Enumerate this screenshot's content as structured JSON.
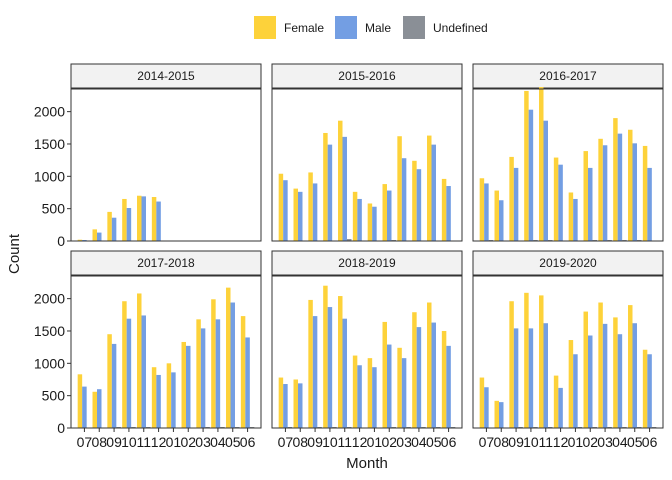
{
  "chart_data": {
    "type": "bar",
    "xlabel": "Month",
    "ylabel": "Count",
    "ylim": [
      0,
      2350
    ],
    "yticks": [
      0,
      500,
      1000,
      1500,
      2000
    ],
    "categories": [
      "07",
      "08",
      "09",
      "10",
      "11",
      "12",
      "01",
      "02",
      "03",
      "04",
      "05",
      "06"
    ],
    "legend": {
      "position": "top",
      "entries": [
        {
          "name": "Female",
          "color": "#FDD23A"
        },
        {
          "name": "Male",
          "color": "#739EE3"
        },
        {
          "name": "Undefined",
          "color": "#8A8F96"
        }
      ]
    },
    "grid": false,
    "panels": [
      {
        "title": "2014-2015",
        "series": [
          {
            "name": "Female",
            "values": [
              20,
              180,
              450,
              650,
              700,
              680,
              null,
              null,
              null,
              null,
              null,
              null
            ]
          },
          {
            "name": "Male",
            "values": [
              10,
              130,
              360,
              510,
              690,
              610,
              null,
              null,
              null,
              null,
              null,
              null
            ]
          },
          {
            "name": "Undefined",
            "values": [
              0,
              0,
              0,
              0,
              0,
              0,
              null,
              null,
              null,
              null,
              null,
              null
            ]
          }
        ]
      },
      {
        "title": "2015-2016",
        "series": [
          {
            "name": "Female",
            "values": [
              1040,
              810,
              1060,
              1670,
              1860,
              760,
              580,
              880,
              1620,
              1240,
              1630,
              960
            ]
          },
          {
            "name": "Male",
            "values": [
              940,
              760,
              890,
              1490,
              1610,
              650,
              530,
              780,
              1280,
              1110,
              1490,
              850
            ]
          },
          {
            "name": "Undefined",
            "values": [
              0,
              0,
              0,
              0,
              30,
              0,
              0,
              10,
              0,
              0,
              0,
              0
            ]
          }
        ]
      },
      {
        "title": "2016-2017",
        "series": [
          {
            "name": "Female",
            "values": [
              970,
              780,
              1300,
              2320,
              2380,
              1290,
              750,
              1390,
              1580,
              1900,
              1720,
              1470
            ]
          },
          {
            "name": "Male",
            "values": [
              890,
              630,
              1130,
              2030,
              1860,
              1180,
              650,
              1130,
              1480,
              1660,
              1510,
              1130
            ]
          },
          {
            "name": "Undefined",
            "values": [
              10,
              0,
              0,
              10,
              10,
              0,
              0,
              10,
              10,
              10,
              10,
              0
            ]
          }
        ]
      },
      {
        "title": "2017-2018",
        "series": [
          {
            "name": "Female",
            "values": [
              830,
              560,
              1450,
              1960,
              2080,
              940,
              1000,
              1330,
              1680,
              1990,
              2170,
              1730
            ]
          },
          {
            "name": "Male",
            "values": [
              640,
              600,
              1300,
              1690,
              1740,
              820,
              860,
              1270,
              1540,
              1680,
              1940,
              1400
            ]
          },
          {
            "name": "Undefined",
            "values": [
              0,
              0,
              10,
              10,
              10,
              0,
              0,
              0,
              10,
              10,
              10,
              10
            ]
          }
        ]
      },
      {
        "title": "2018-2019",
        "series": [
          {
            "name": "Female",
            "values": [
              780,
              750,
              1980,
              2200,
              2040,
              1120,
              1080,
              1640,
              1240,
              1790,
              1940,
              1500
            ]
          },
          {
            "name": "Male",
            "values": [
              680,
              690,
              1730,
              1870,
              1690,
              970,
              940,
              1290,
              1080,
              1560,
              1630,
              1270
            ]
          },
          {
            "name": "Undefined",
            "values": [
              10,
              0,
              10,
              10,
              10,
              0,
              0,
              10,
              10,
              10,
              10,
              10
            ]
          }
        ]
      },
      {
        "title": "2019-2020",
        "series": [
          {
            "name": "Female",
            "values": [
              780,
              420,
              1960,
              2090,
              2050,
              810,
              1360,
              1800,
              1940,
              1710,
              1900,
              1210
            ]
          },
          {
            "name": "Male",
            "values": [
              630,
              400,
              1540,
              1540,
              1620,
              620,
              1140,
              1430,
              1610,
              1450,
              1620,
              1140
            ]
          },
          {
            "name": "Undefined",
            "values": [
              0,
              0,
              10,
              10,
              10,
              0,
              10,
              10,
              10,
              10,
              10,
              10
            ]
          }
        ]
      }
    ]
  }
}
